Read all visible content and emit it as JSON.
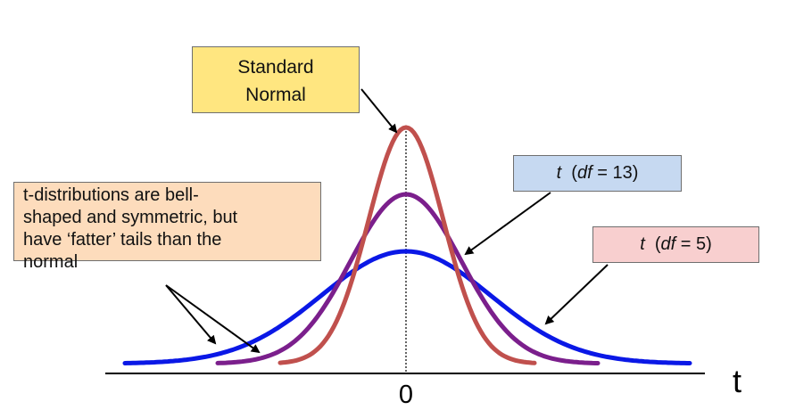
{
  "labels": {
    "normal_line1": "Standard",
    "normal_line2": "Normal",
    "df13_t": "t",
    "df13_open": "  (",
    "df13_df": "df",
    "df13_rest": " = 13)",
    "df5_t": "t",
    "df5_open": "  (",
    "df5_df": "df",
    "df5_rest": " = 5)",
    "note_lines": [
      "t-distributions are bell-",
      "shaped and symmetric, but",
      "have ‘fatter’ tails than the",
      "normal"
    ]
  },
  "axis": {
    "zero_label": "0",
    "variable_label": "t"
  },
  "curves": [
    {
      "id": "standard-normal",
      "df": null,
      "color": "#c0504d"
    },
    {
      "id": "t-df-13",
      "df": 13,
      "color": "#7b1f8c"
    },
    {
      "id": "t-df-5",
      "df": 5,
      "color": "#0a18e6"
    }
  ]
}
